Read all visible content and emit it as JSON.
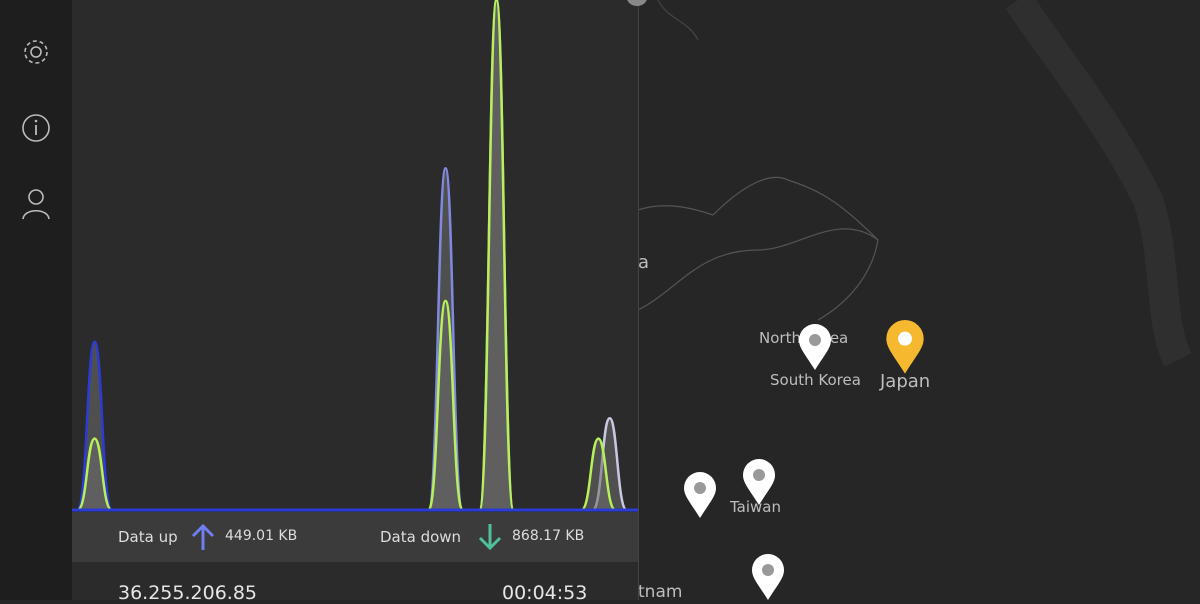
{
  "sidebar": {
    "items": [
      {
        "icon": "gear-icon",
        "label": "Settings"
      },
      {
        "icon": "info-icon",
        "label": "Info"
      },
      {
        "icon": "user-icon",
        "label": "Account"
      }
    ]
  },
  "chart_data": {
    "type": "area",
    "title": "",
    "xlim": [
      0,
      100
    ],
    "ylim": [
      0,
      100
    ],
    "grid": false,
    "series": [
      {
        "color": "#2a3bd6",
        "peaks": [
          {
            "x": 4,
            "y": 33
          }
        ]
      },
      {
        "color": "#8088e0",
        "peaks": [
          {
            "x": 66,
            "y": 67
          },
          {
            "x": 75,
            "y": 100
          }
        ]
      },
      {
        "color": "#c8c8e0",
        "peaks": [
          {
            "x": 95,
            "y": 18
          }
        ]
      },
      {
        "color": "#b6f05a",
        "peaks": [
          {
            "x": 4,
            "y": 14
          },
          {
            "x": 66,
            "y": 41
          },
          {
            "x": 75,
            "y": 100
          },
          {
            "x": 93,
            "y": 14
          }
        ]
      }
    ]
  },
  "stats": {
    "up_label": "Data up",
    "up_value": "449.01 KB",
    "up_color": "#6f7ff0",
    "down_label": "Data down",
    "down_value": "868.17 KB",
    "down_color": "#4fc09a"
  },
  "bottom": {
    "ip": "36.255.206.85",
    "duration": "00:04:53"
  },
  "map": {
    "labels": {
      "china_partial": "a",
      "north_korea": "North Korea",
      "south_korea": "South Korea",
      "japan": "Japan",
      "taiwan": "Taiwan",
      "vietnam_partial": "tnam"
    },
    "active_color": "#f5b82e"
  }
}
